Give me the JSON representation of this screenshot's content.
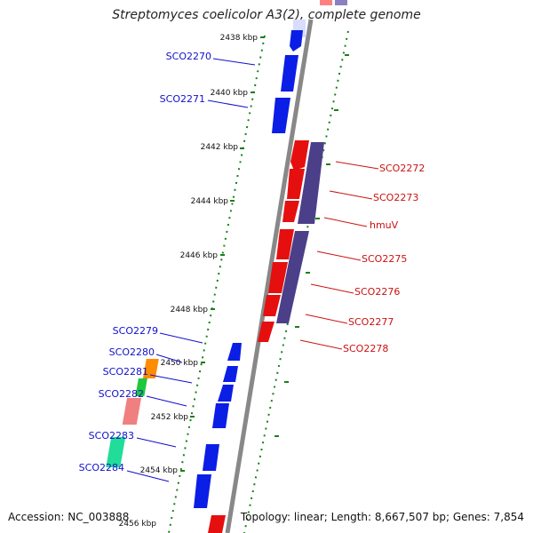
{
  "title": "Streptomyces coelicolor A3(2), complete genome",
  "footer": {
    "accession": "Accession: NC_003888",
    "summary": "Topology: linear; Length: 8,667,507 bp; Genes: 7,854"
  },
  "colors": {
    "forward_label": "#1010cc",
    "reverse_label": "#cc1010",
    "backbone": "#888888",
    "tick": "#1a7f1a",
    "forward_gene": "#0a1ee6",
    "reverse_gene": "#e60f0f",
    "operon": "#4b3f8a"
  },
  "scale_labels": [
    "2438 kbp",
    "2440 kbp",
    "2442 kbp",
    "2444 kbp",
    "2446 kbp",
    "2448 kbp",
    "2450 kbp",
    "2452 kbp",
    "2454 kbp",
    "2456 kbp"
  ],
  "forward_genes": [
    "SCO2270",
    "SCO2271",
    "SCO2279",
    "SCO2280",
    "SCO2281",
    "SCO2282",
    "SCO2283",
    "SCO2284"
  ],
  "reverse_genes": [
    "SCO2272",
    "SCO2273",
    "hmuV",
    "SCO2275",
    "SCO2276",
    "SCO2277",
    "SCO2278"
  ]
}
